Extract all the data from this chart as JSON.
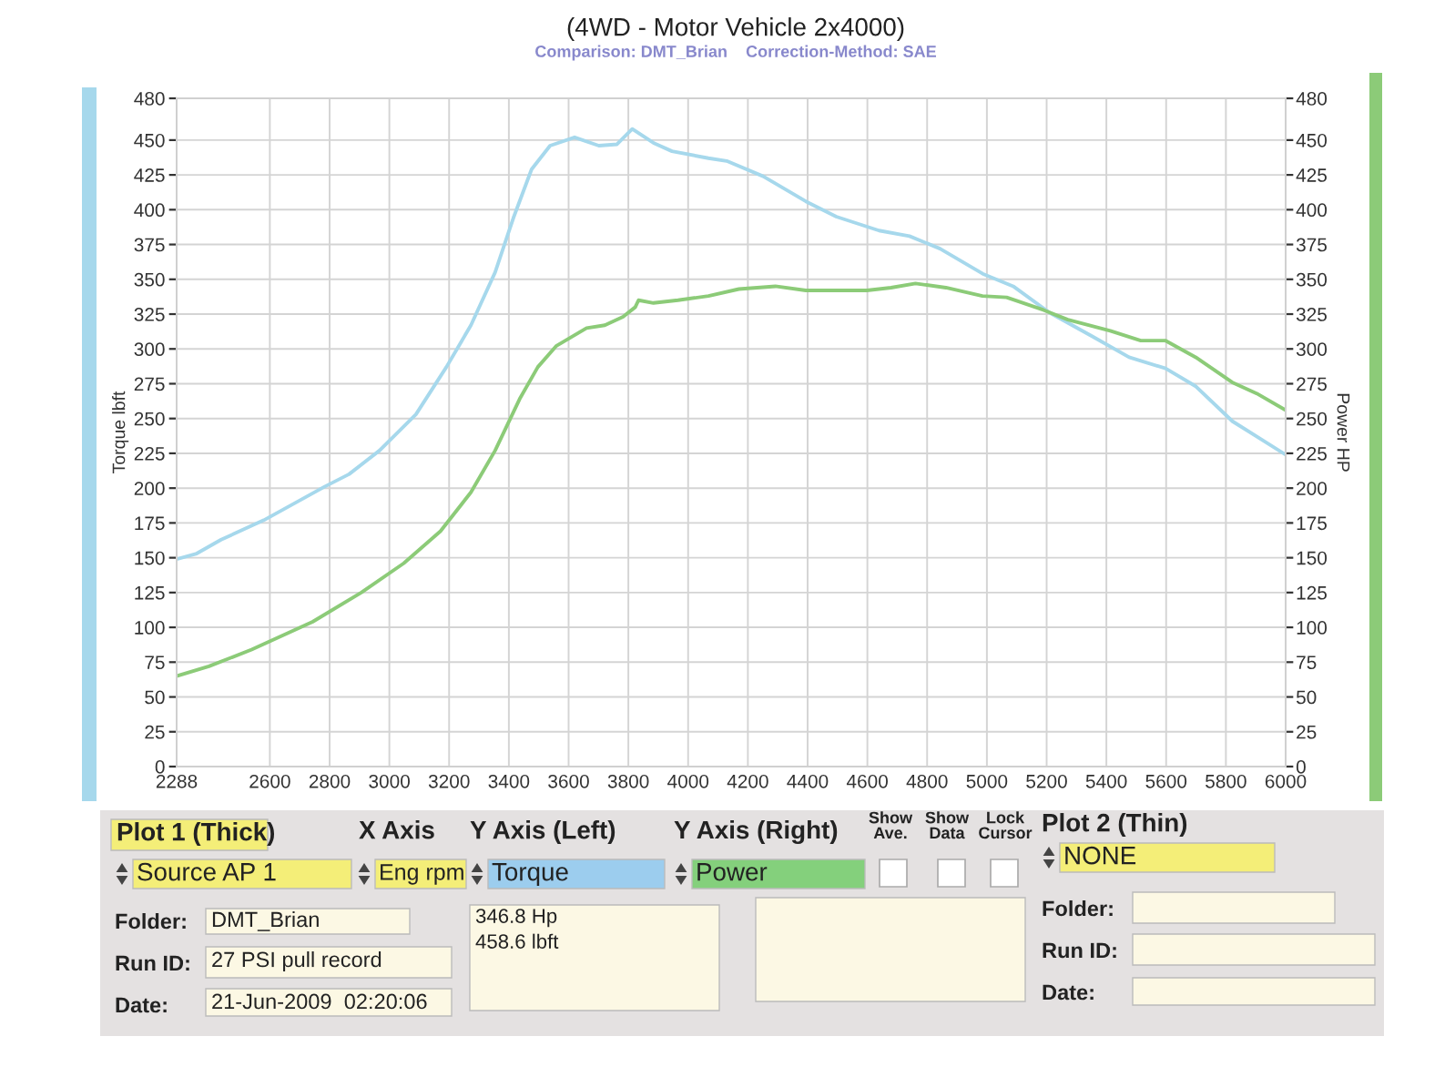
{
  "chart_data": [
    {
      "type": "line",
      "title": "(4WD - Motor Vehicle 2x4000)",
      "subtitle": "Comparison: DMT_Brian    Correction-Method: SAE",
      "ylabel": "Torque lbft",
      "y2label": "Power HP",
      "xlim": [
        2288,
        6000
      ],
      "xticks": [
        2288,
        2600,
        2800,
        3000,
        3200,
        3400,
        3600,
        3800,
        4000,
        4200,
        4400,
        4600,
        4800,
        5000,
        5200,
        5400,
        5600,
        5800,
        6000
      ],
      "ylim": [
        0,
        480
      ],
      "yticks": [
        0,
        25,
        50,
        75,
        100,
        125,
        150,
        175,
        200,
        225,
        250,
        275,
        300,
        325,
        350,
        375,
        400,
        425,
        450,
        480
      ],
      "y2lim": [
        0,
        480
      ],
      "y2ticks": [
        0,
        25,
        50,
        75,
        100,
        125,
        150,
        175,
        200,
        225,
        250,
        275,
        300,
        325,
        350,
        375,
        400,
        425,
        450,
        480
      ],
      "grid": true,
      "series": [
        {
          "color": "#a6d8ec",
          "x": [
            2288,
            2355,
            2437,
            2580,
            2783,
            2865,
            2967,
            3089,
            3191,
            3273,
            3354,
            3415,
            3476,
            3538,
            3620,
            3701,
            3762,
            3813,
            3884,
            3946,
            4068,
            4129,
            4251,
            4394,
            4496,
            4639,
            4741,
            4843,
            4986,
            5088,
            5210,
            5353,
            5476,
            5598,
            5700,
            5822,
            5904,
            6000
          ],
          "values": [
            149,
            153,
            163,
            177,
            201,
            210,
            227,
            253,
            287,
            317,
            355,
            394,
            429,
            446,
            452,
            446,
            447,
            458,
            448,
            442,
            437,
            435,
            424,
            406,
            395,
            385,
            381,
            372,
            354,
            345,
            326,
            309,
            294,
            286,
            273,
            248,
            237,
            224
          ]
        },
        {
          "color": "#8ccb78",
          "axis": "y2",
          "x": [
            2288,
            2396,
            2539,
            2743,
            2906,
            3048,
            3171,
            3273,
            3354,
            3436,
            3497,
            3558,
            3660,
            3721,
            3782,
            3823,
            3834,
            3884,
            3966,
            4068,
            4170,
            4292,
            4394,
            4598,
            4679,
            4761,
            4863,
            4985,
            5066,
            5189,
            5271,
            5413,
            5515,
            5597,
            5699,
            5821,
            5903,
            6000
          ],
          "values": [
            65,
            72,
            84,
            104,
            125,
            146,
            169,
            197,
            227,
            264,
            287,
            302,
            315,
            317,
            323,
            330,
            335,
            333,
            335,
            338,
            343,
            345,
            342,
            342,
            344,
            347,
            344,
            338,
            337,
            328,
            321,
            313,
            306,
            306,
            294,
            276,
            268,
            256
          ]
        }
      ]
    },
    {
      "type": "other",
      "annotations": [
        "Plot 1 (Thick)",
        "X Axis",
        "Y Axis (Left)",
        "Y Axis (Right)",
        "Show\nAve.",
        "Show\nData",
        "Lock\nCursor",
        "Plot 2 (Thin)",
        "Source AP 1",
        "Eng rpm",
        "Torque",
        "Power",
        "NONE",
        "Folder:",
        "DMT_Brian",
        "Run ID:",
        "27 PSI pull record",
        "Date:",
        "21-Jun-2009  02:20:06",
        "346.8 Hp",
        "458.6 lbft",
        "Folder:",
        "Run ID:",
        "Date:"
      ]
    }
  ]
}
